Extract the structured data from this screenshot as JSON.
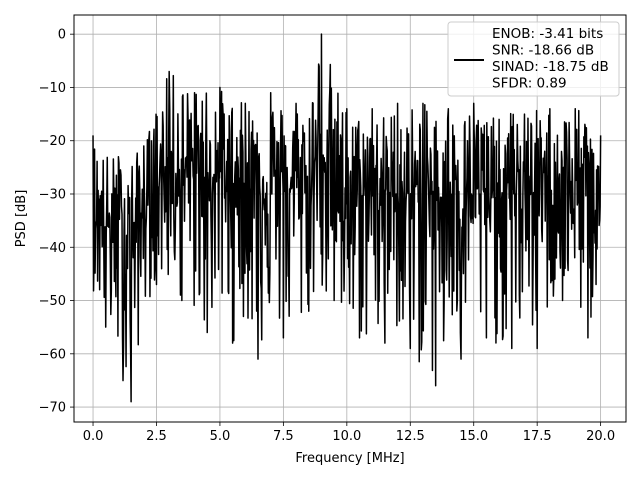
{
  "chart_data": {
    "type": "line",
    "xlabel": "Frequency [MHz]",
    "ylabel": "PSD [dB]",
    "xlim": [
      -0.75,
      21.0
    ],
    "ylim": [
      -72.8,
      3.6
    ],
    "x_ticks": [
      0.0,
      2.5,
      5.0,
      7.5,
      10.0,
      12.5,
      15.0,
      17.5,
      20.0
    ],
    "x_tick_labels": [
      "0.0",
      "2.5",
      "5.0",
      "7.5",
      "10.0",
      "12.5",
      "15.0",
      "17.5",
      "20.0"
    ],
    "y_ticks": [
      0,
      -10,
      -20,
      -30,
      -40,
      -50,
      -60,
      -70
    ],
    "y_tick_labels": [
      "0",
      "−10",
      "−20",
      "−30",
      "−40",
      "−50",
      "−60",
      "−70"
    ],
    "grid": true,
    "legend_position": "top-right",
    "line_color": "#000000",
    "series": [
      {
        "legend_lines": [
          "ENOB: -3.41 bits",
          "SNR: -18.66 dB",
          "SINAD: -18.75 dB",
          "SFDR: 0.89"
        ],
        "x_range": [
          0.0,
          20.0
        ],
        "approx_num_points": 1000,
        "envelope": {
          "x": [
            0.0,
            0.5,
            1.0,
            1.5,
            2.0,
            2.5,
            3.0,
            3.5,
            4.0,
            4.5,
            5.0,
            5.5,
            6.0,
            6.5,
            7.0,
            7.5,
            8.0,
            8.5,
            9.0,
            9.5,
            10.0,
            10.5,
            11.0,
            11.5,
            12.0,
            12.5,
            13.0,
            13.5,
            14.0,
            14.5,
            15.0,
            15.5,
            16.0,
            16.5,
            17.0,
            17.5,
            18.0,
            18.5,
            19.0,
            19.5,
            20.0
          ],
          "max": [
            -19,
            -22,
            -23,
            -23,
            -21,
            -13,
            -7,
            -8,
            -11,
            -7,
            -10,
            -12,
            -13,
            -11,
            -11,
            -13,
            -13,
            -11,
            0,
            -7,
            -14,
            -15,
            -14,
            -15,
            -13,
            -13,
            -13,
            -14,
            -14,
            -15,
            -13,
            -14,
            -16,
            -14,
            -15,
            -14,
            -14,
            -14,
            -14,
            -15,
            -19
          ],
          "min": [
            -48,
            -55,
            -63,
            -69,
            -52,
            -47,
            -48,
            -50,
            -54,
            -56,
            -53,
            -58,
            -54,
            -61,
            -55,
            -57,
            -61,
            -52,
            -52,
            -50,
            -64,
            -57,
            -61,
            -58,
            -56,
            -59,
            -64,
            -66,
            -63,
            -61,
            -60,
            -57,
            -59,
            -59,
            -55,
            -59,
            -52,
            -50,
            -51,
            -57,
            -48
          ],
          "base": [
            -34,
            -36,
            -37,
            -37,
            -34,
            -28,
            -25,
            -26,
            -27,
            -26,
            -27,
            -28,
            -28,
            -28,
            -28,
            -29,
            -29,
            -28,
            -22,
            -26,
            -30,
            -30,
            -30,
            -30,
            -30,
            -30,
            -31,
            -31,
            -30,
            -30,
            -30,
            -30,
            -31,
            -30,
            -30,
            -30,
            -30,
            -30,
            -30,
            -30,
            -33
          ]
        }
      }
    ]
  }
}
